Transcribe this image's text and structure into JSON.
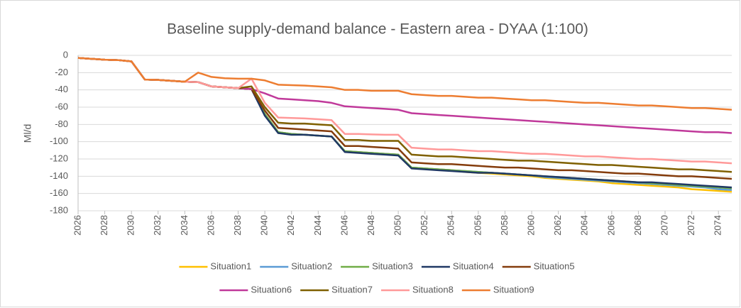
{
  "chart_data": {
    "type": "line",
    "title": "Baseline supply-demand balance - Eastern area - DYAA (1:100)",
    "y_label": "Ml/d",
    "grid": true,
    "legend": "bottom",
    "x": [
      2026,
      2027,
      2028,
      2029,
      2030,
      2031,
      2032,
      2033,
      2034,
      2035,
      2036,
      2037,
      2038,
      2039,
      2040,
      2041,
      2042,
      2043,
      2044,
      2045,
      2046,
      2047,
      2048,
      2049,
      2050,
      2051,
      2052,
      2053,
      2054,
      2055,
      2056,
      2057,
      2058,
      2059,
      2060,
      2061,
      2062,
      2063,
      2064,
      2065,
      2066,
      2067,
      2068,
      2069,
      2070,
      2071,
      2072,
      2073,
      2074,
      2075
    ],
    "xlim": [
      2026,
      2075
    ],
    "xticks": [
      2026,
      2028,
      2030,
      2032,
      2034,
      2036,
      2038,
      2040,
      2042,
      2044,
      2046,
      2048,
      2050,
      2052,
      2054,
      2056,
      2058,
      2060,
      2062,
      2064,
      2066,
      2068,
      2070,
      2072,
      2074
    ],
    "ylim": [
      -180,
      0
    ],
    "yticks": [
      0,
      -20,
      -40,
      -60,
      -80,
      -100,
      -120,
      -140,
      -160,
      -180
    ],
    "series": [
      {
        "name": "Situation1",
        "color": "#ffc000",
        "values": [
          -3,
          -4,
          -5,
          -5.5,
          -7,
          -28,
          -28.5,
          -29.5,
          -30.5,
          -31,
          -36,
          -37,
          -38,
          -39,
          -68,
          -89,
          -91,
          -92,
          -93,
          -94,
          -111,
          -112,
          -113,
          -114,
          -115,
          -130,
          -131,
          -132,
          -133,
          -135,
          -136,
          -137,
          -138,
          -139,
          -140,
          -142,
          -143,
          -144,
          -145,
          -146,
          -148,
          -149,
          -150,
          -151,
          -152,
          -153,
          -155,
          -156,
          -157,
          -158
        ]
      },
      {
        "name": "Situation2",
        "color": "#5b9bd5",
        "values": [
          -3,
          -4,
          -5,
          -5.5,
          -7,
          -28,
          -28.5,
          -29.5,
          -30.5,
          -31,
          -36,
          -37,
          -38,
          -39,
          -68,
          -89,
          -91,
          -92,
          -93,
          -94,
          -111,
          -112,
          -113,
          -114,
          -115,
          -130,
          -131,
          -132,
          -133,
          -134,
          -135,
          -136,
          -137,
          -138,
          -139,
          -141,
          -142,
          -143,
          -144,
          -145,
          -146,
          -147,
          -148,
          -149,
          -150,
          -151,
          -152,
          -153,
          -155,
          -156
        ]
      },
      {
        "name": "Situation3",
        "color": "#70ad47",
        "values": [
          -3,
          -4,
          -5,
          -5.5,
          -7,
          -28,
          -28.5,
          -29.5,
          -30.5,
          -31,
          -36,
          -37,
          -38,
          -39,
          -68,
          -89,
          -91,
          -92,
          -93,
          -94,
          -111,
          -112,
          -113,
          -114,
          -115,
          -130,
          -131,
          -132,
          -133,
          -134,
          -135,
          -136,
          -137,
          -138,
          -139,
          -140,
          -141,
          -142,
          -143,
          -144,
          -145,
          -146,
          -147,
          -148,
          -149,
          -150,
          -151,
          -152,
          -153,
          -154
        ]
      },
      {
        "name": "Situation4",
        "color": "#1f3864",
        "values": [
          -3,
          -4,
          -5,
          -5.5,
          -7,
          -28,
          -28.5,
          -29.5,
          -30.5,
          -31,
          -36,
          -37,
          -38,
          -39,
          -70,
          -90,
          -92,
          -92,
          -93,
          -94,
          -112,
          -113,
          -114,
          -115,
          -116,
          -131,
          -132,
          -133,
          -134,
          -135,
          -136,
          -136,
          -137,
          -138,
          -139,
          -140,
          -141,
          -142,
          -143,
          -144,
          -145,
          -146,
          -147,
          -147,
          -148,
          -149,
          -150,
          -151,
          -152,
          -153
        ]
      },
      {
        "name": "Situation5",
        "color": "#843c0c",
        "values": [
          -3,
          -4,
          -5,
          -5.5,
          -7,
          -28,
          -28.5,
          -29.5,
          -30.5,
          -31,
          -36,
          -37,
          -38,
          -39,
          -64,
          -84,
          -85,
          -86,
          -87,
          -88,
          -105,
          -105,
          -106,
          -107,
          -108,
          -124,
          -125,
          -126,
          -126,
          -127,
          -128,
          -129,
          -130,
          -130,
          -131,
          -132,
          -133,
          -133,
          -134,
          -135,
          -136,
          -137,
          -137,
          -138,
          -139,
          -140,
          -140,
          -141,
          -142,
          -143
        ]
      },
      {
        "name": "Situation6",
        "color": "#c0399a",
        "values": [
          -3,
          -4,
          -5,
          -5.5,
          -7,
          -28,
          -28.5,
          -29.5,
          -30.5,
          -31,
          -36,
          -37,
          -38,
          -39,
          -44,
          -50,
          -51,
          -52,
          -53,
          -55,
          -59,
          -60,
          -61,
          -62,
          -63,
          -67,
          -68,
          -69,
          -70,
          -71,
          -72,
          -73,
          -74,
          -75,
          -76,
          -77,
          -78,
          -79,
          -80,
          -81,
          -82,
          -83,
          -84,
          -85,
          -86,
          -87,
          -88,
          -89,
          -89,
          -90
        ]
      },
      {
        "name": "Situation7",
        "color": "#7f6000",
        "values": [
          -3,
          -4,
          -5,
          -5.5,
          -7,
          -28,
          -28.5,
          -29.5,
          -30.5,
          -31,
          -36,
          -37,
          -38,
          -36,
          -60,
          -78,
          -79,
          -79,
          -80,
          -81,
          -98,
          -98,
          -99,
          -99,
          -99,
          -115,
          -116,
          -117,
          -117,
          -118,
          -119,
          -120,
          -121,
          -122,
          -122,
          -123,
          -124,
          -125,
          -126,
          -127,
          -127,
          -128,
          -129,
          -130,
          -131,
          -132,
          -132,
          -133,
          -134,
          -135
        ]
      },
      {
        "name": "Situation8",
        "color": "#ff9999",
        "values": [
          -3,
          -4,
          -5,
          -5.5,
          -7,
          -28,
          -28.5,
          -29.5,
          -30.5,
          -31,
          -36,
          -37,
          -38,
          -27,
          -55,
          -72,
          -72.5,
          -73,
          -74,
          -75,
          -91,
          -91,
          -91.5,
          -92,
          -92,
          -107,
          -108,
          -109,
          -109,
          -110,
          -111,
          -111,
          -112,
          -113,
          -114,
          -114,
          -115,
          -116,
          -117,
          -117,
          -118,
          -119,
          -120,
          -120,
          -121,
          -122,
          -123,
          -123,
          -124,
          -125
        ]
      },
      {
        "name": "Situation9",
        "color": "#ed7d31",
        "values": [
          -3,
          -4,
          -5,
          -5.5,
          -7,
          -28,
          -28.5,
          -29.5,
          -30.5,
          -20,
          -25,
          -26.5,
          -27,
          -27,
          -29,
          -34,
          -34.5,
          -35,
          -36,
          -37,
          -40,
          -40,
          -41,
          -41,
          -41,
          -45,
          -46,
          -47,
          -47,
          -48,
          -49,
          -49,
          -50,
          -51,
          -52,
          -52,
          -53,
          -54,
          -55,
          -55,
          -56,
          -57,
          -58,
          -58,
          -59,
          -60,
          -61,
          -61,
          -62,
          -63
        ]
      }
    ]
  }
}
